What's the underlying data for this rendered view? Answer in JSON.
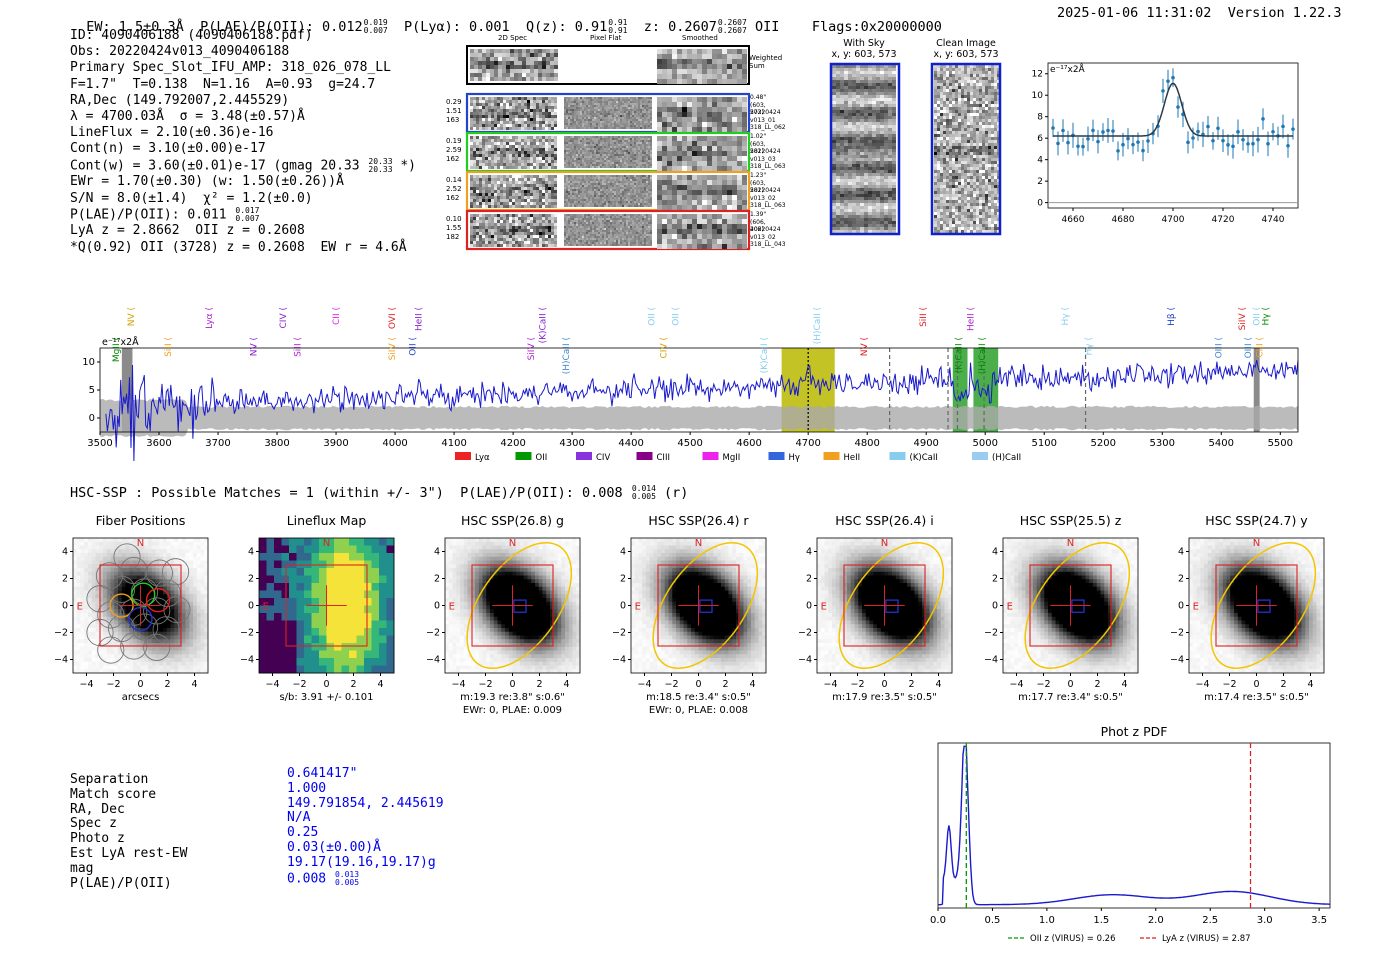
{
  "header": {
    "ew": "EW: 1.5±0.3Å",
    "plae_label": "P(LAE)/P(OII): 0.012",
    "plae_hi": "0.019",
    "plae_lo": "0.007",
    "plya": "P(Lyα): 0.001",
    "qz_label": "Q(z): 0.91",
    "qz_hi": "0.91",
    "qz_lo": "0.91",
    "z_label": "z: 0.2607",
    "z_hi": "0.2607",
    "z_lo": "0.2607",
    "z_line": "OII",
    "flags": "Flags:0x20000000",
    "datetime": "2025-01-06 11:31:02",
    "version": "Version 1.22.3"
  },
  "info": {
    "lines": [
      "ID: 4090406188 (4090406188.pdf)",
      "Obs: 20220424v013_4090406188",
      "Primary Spec_Slot_IFU_AMP: 318_026_078_LL",
      "F=1.7\"  T=0.138  N=1.16  A=0.93  g=24.7",
      "RA,Dec (149.792007,2.445529)",
      "λ = 4700.03Å  σ = 3.48(±0.57)Å",
      "LineFlux = 2.10(±0.36)e-16",
      "Cont(n) = 3.10(±0.00)e-17"
    ],
    "contw": "Cont(w) = 3.60(±0.01)e-17 (gmag 20.33",
    "contw_hi": "20.33",
    "contw_lo": "20.33",
    "contw_tail": " *)",
    "ewr": "EWr = 1.70(±0.30) (w: 1.50(±0.26))Å",
    "sn": "S/N = 8.0(±1.4)  χ² = 1.2(±0.0)",
    "plae": "P(LAE)/P(OII): 0.011",
    "plae_hi": "0.017",
    "plae_lo": "0.007",
    "lya": "LyA z = 2.8662  OII z = 0.2608",
    "q": "*Q(0.92) OII (3728) z = 0.2608  EW r = 4.6Å"
  },
  "cutouts": {
    "col_titles": [
      "2D Spec",
      "Pixel Flat",
      "Smoothed"
    ],
    "weighted_label": "Weighted Sum",
    "rows": [
      {
        "left": [
          "0.29",
          "1.51",
          "163"
        ],
        "right": [
          "0.48\"",
          "(603, 573)",
          "20220424",
          "v013_01",
          "318_LL_062"
        ],
        "color": "#2244cc"
      },
      {
        "left": [
          "0.19",
          "2.59",
          "162"
        ],
        "right": [
          "1.02\"",
          "(603, 581)",
          "20220424",
          "v013_03",
          "318_LL_063"
        ],
        "color": "#22cc22"
      },
      {
        "left": [
          "0.14",
          "2.52",
          "162"
        ],
        "right": [
          "1.23\"",
          "(603, 581)",
          "20220424",
          "v013_02",
          "318_LL_063"
        ],
        "color": "#f0a020"
      },
      {
        "left": [
          "0.10",
          "1.55",
          "182"
        ],
        "right": [
          "1.39\"",
          "(606, 406)",
          "20220424",
          "v013_02",
          "318_LL_043"
        ],
        "color": "#dd2222"
      }
    ]
  },
  "sky": {
    "with_sky_title": "With Sky",
    "with_sky_coords": "x, y: 603, 573",
    "clean_title": "Clean Image",
    "clean_coords": "x, y: 603, 573"
  },
  "chart_data": [
    {
      "type": "scatter",
      "name": "zoom-spectrum",
      "ylabel": "e⁻¹⁷x2Å",
      "xlim": [
        4650,
        4750
      ],
      "ylim": [
        -0.5,
        13
      ],
      "xticks": [
        4660,
        4680,
        4700,
        4720,
        4740
      ],
      "yticks": [
        0,
        2,
        4,
        6,
        8,
        10,
        12
      ],
      "fit": {
        "continuum": 6.2,
        "center": 4700,
        "amplitude": 4.9,
        "sigma": 3.48
      }
    },
    {
      "type": "line",
      "name": "full-spectrum",
      "ylabel": "e⁻¹⁷x2Å",
      "xlim": [
        3500,
        5530
      ],
      "ylim": [
        -2.5,
        12.5
      ],
      "xticks": [
        3500,
        3600,
        3700,
        3800,
        3900,
        4000,
        4100,
        4200,
        4300,
        4400,
        4500,
        4600,
        4700,
        4800,
        4900,
        5000,
        5100,
        5200,
        5300,
        5400,
        5500
      ],
      "yticks": [
        0,
        5,
        10
      ],
      "shaded_windows": [
        {
          "x0": 4655,
          "x1": 4745,
          "color": "#b8b800"
        },
        {
          "x0": 4945,
          "x1": 4970,
          "color": "#2ca02c"
        },
        {
          "x0": 4980,
          "x1": 5022,
          "color": "#2ca02c"
        },
        {
          "x0": 3537,
          "x1": 3555,
          "color": "#777777"
        },
        {
          "x0": 5455,
          "x1": 5465,
          "color": "#777777"
        }
      ],
      "dashed_lines": [
        4700,
        4838,
        4937,
        4953,
        4998,
        5170
      ],
      "line_labels": [
        {
          "text": "MgII",
          "x": 3532,
          "color": "#008800"
        },
        {
          "text": "NV",
          "x": 3558,
          "color": "#d4a000"
        },
        {
          "text": "SiII",
          "x": 3620,
          "color": "#f0a020"
        },
        {
          "text": "Lyα",
          "x": 3690,
          "color": "#aa22cc"
        },
        {
          "text": "NV",
          "x": 3765,
          "color": "#8822cc"
        },
        {
          "text": "CIV",
          "x": 3815,
          "color": "#8822cc"
        },
        {
          "text": "SiII",
          "x": 3840,
          "color": "#aa22cc"
        },
        {
          "text": "CII",
          "x": 3905,
          "color": "#dd22dd"
        },
        {
          "text": "SiIV",
          "x": 4000,
          "color": "#f0a020"
        },
        {
          "text": "OVI",
          "x": 4000,
          "color": "#dd2222"
        },
        {
          "text": "OII",
          "x": 4035,
          "color": "#2244cc"
        },
        {
          "text": "HeII",
          "x": 4045,
          "color": "#8822cc"
        },
        {
          "text": "SiIV",
          "x": 4235,
          "color": "#aa22cc"
        },
        {
          "text": "(K)CaII",
          "x": 4255,
          "color": "#8822cc"
        },
        {
          "text": "(H)CaII",
          "x": 4295,
          "color": "#4488cc"
        },
        {
          "text": "OII",
          "x": 4440,
          "color": "#88ccee"
        },
        {
          "text": "CIV",
          "x": 4460,
          "color": "#d4a000"
        },
        {
          "text": "OII",
          "x": 4480,
          "color": "#88ccee"
        },
        {
          "text": "(K)CaII",
          "x": 4630,
          "color": "#88ccee"
        },
        {
          "text": "(H)CaII",
          "x": 4720,
          "color": "#88ccee"
        },
        {
          "text": "NV",
          "x": 4800,
          "color": "#dd2222"
        },
        {
          "text": "SiII",
          "x": 4900,
          "color": "#dd2222"
        },
        {
          "text": "(K)CaII",
          "x": 4960,
          "color": "#008800"
        },
        {
          "text": "HeII",
          "x": 4980,
          "color": "#aa22cc"
        },
        {
          "text": "(H)CaII",
          "x": 5000,
          "color": "#008800"
        },
        {
          "text": "Hγ",
          "x": 5140,
          "color": "#88ccee"
        },
        {
          "text": "Hγ",
          "x": 5180,
          "color": "#88ccee"
        },
        {
          "text": "Hβ",
          "x": 5320,
          "color": "#2244cc"
        },
        {
          "text": "OIII",
          "x": 5400,
          "color": "#4488cc"
        },
        {
          "text": "SiIV",
          "x": 5440,
          "color": "#dd2222"
        },
        {
          "text": "OIII",
          "x": 5450,
          "color": "#4488cc"
        },
        {
          "text": "OII",
          "x": 5465,
          "color": "#88ccee"
        },
        {
          "text": "CIII",
          "x": 5470,
          "color": "#f0a020"
        },
        {
          "text": "Hγ",
          "x": 5480,
          "color": "#008800"
        }
      ],
      "legend": [
        {
          "label": "Lyα",
          "color": "#ee2222"
        },
        {
          "label": "OII",
          "color": "#009900"
        },
        {
          "label": "CIV",
          "color": "#8833dd"
        },
        {
          "label": "CIII",
          "color": "#880088"
        },
        {
          "label": "MgII",
          "color": "#ee22ee"
        },
        {
          "label": "Hγ",
          "color": "#3366dd"
        },
        {
          "label": "HeII",
          "color": "#f0a020"
        },
        {
          "label": "(K)CaII",
          "color": "#88ccee"
        },
        {
          "label": "(H)CaII",
          "color": "#99ccee"
        }
      ]
    },
    {
      "type": "line",
      "name": "photz-pdf",
      "title": "Phot z PDF",
      "xlim": [
        0,
        3.6
      ],
      "xticks": [
        0.0,
        0.5,
        1.0,
        1.5,
        2.0,
        2.5,
        3.0,
        3.5
      ],
      "vlines": [
        {
          "x": 0.26,
          "color": "#009900",
          "label": "OII z (VIRUS) = 0.26"
        },
        {
          "x": 2.87,
          "color": "#dd2222",
          "label": "LyA z (VIRUS) = 2.87"
        }
      ]
    }
  ],
  "hsc": {
    "summary": "HSC-SSP : Possible Matches = 1 (within +/- 3\")  P(LAE)/P(OII): 0.008",
    "summary_hi": "0.014",
    "summary_lo": "0.005",
    "summary_tail": " (r)",
    "panels": [
      {
        "title": "Fiber Positions",
        "cap1": "arcsecs",
        "cap2": ""
      },
      {
        "title": "Lineflux Map",
        "cap1": "s/b: 3.91 +/- 0.101",
        "cap2": ""
      },
      {
        "title": "HSC SSP(26.8) g",
        "cap1": "m:19.3  re:3.8\"  s:0.6\"",
        "cap2": "EWr: 0, PLAE: 0.009"
      },
      {
        "title": "HSC SSP(26.4) r",
        "cap1": "m:18.5  re:3.4\"  s:0.5\"",
        "cap2": "EWr: 0, PLAE: 0.008"
      },
      {
        "title": "HSC SSP(26.4) i",
        "cap1": "m:17.9  re:3.5\"  s:0.5\"",
        "cap2": ""
      },
      {
        "title": "HSC SSP(25.5) z",
        "cap1": "m:17.7  re:3.4\"  s:0.5\"",
        "cap2": ""
      },
      {
        "title": "HSC SSP(24.7) y",
        "cap1": "m:17.4  re:3.5\"  s:0.5\"",
        "cap2": ""
      }
    ],
    "yticks": [
      "4",
      "2",
      "0",
      "−2",
      "−4"
    ],
    "xticks": [
      "−4",
      "−2",
      "0",
      "2",
      "4"
    ],
    "north": "N",
    "east": "E"
  },
  "match": {
    "labels": [
      "Separation",
      "Match score",
      "RA, Dec",
      "Spec z",
      "Photo z",
      "Est LyA rest-EW",
      "mag",
      "P(LAE)/P(OII)"
    ],
    "values": [
      "0.641417\"",
      "1.000",
      "149.791854, 2.445619",
      "N/A",
      "0.25",
      "0.03(±0.00)Å",
      "19.17(19.16,19.17)g",
      "0.008"
    ],
    "plae_hi": "0.013",
    "plae_lo": "0.005"
  }
}
